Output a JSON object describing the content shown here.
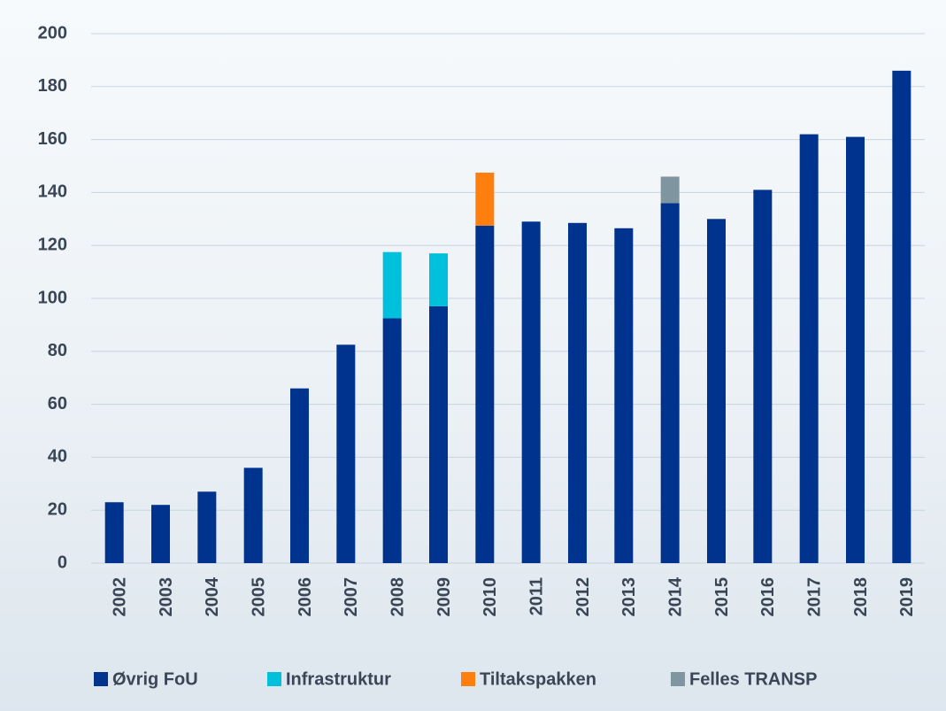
{
  "chart_data": {
    "type": "stacked_bar",
    "categories": [
      "2002",
      "2003",
      "2004",
      "2005",
      "2006",
      "2007",
      "2008",
      "2009",
      "2010",
      "2011",
      "2012",
      "2013",
      "2014",
      "2015",
      "2016",
      "2017",
      "2018",
      "2019"
    ],
    "series": [
      {
        "name": "Øvrig FoU",
        "color": "#00338d",
        "values": [
          23,
          22,
          27,
          36,
          66,
          82.5,
          92.5,
          97,
          127.5,
          129,
          128.5,
          126.5,
          136,
          130,
          141,
          162,
          161,
          186
        ]
      },
      {
        "name": "Infrastruktur",
        "color": "#00c0dc",
        "values": [
          null,
          null,
          null,
          null,
          null,
          null,
          25,
          20,
          null,
          null,
          null,
          null,
          null,
          null,
          null,
          null,
          null,
          null
        ]
      },
      {
        "name": "Tiltakspakken",
        "color": "#ff7f0e",
        "values": [
          null,
          null,
          null,
          null,
          null,
          null,
          null,
          null,
          20,
          null,
          null,
          null,
          null,
          null,
          null,
          null,
          null,
          null
        ]
      },
      {
        "name": "Felles TRANSP",
        "color": "#7f95a0",
        "values": [
          null,
          null,
          null,
          null,
          null,
          null,
          null,
          null,
          null,
          null,
          null,
          null,
          10,
          null,
          null,
          null,
          null,
          null
        ]
      }
    ],
    "ylim": [
      0,
      200
    ],
    "yticks": [
      0,
      20,
      40,
      60,
      80,
      100,
      120,
      140,
      160,
      180,
      200
    ],
    "grid": true
  }
}
